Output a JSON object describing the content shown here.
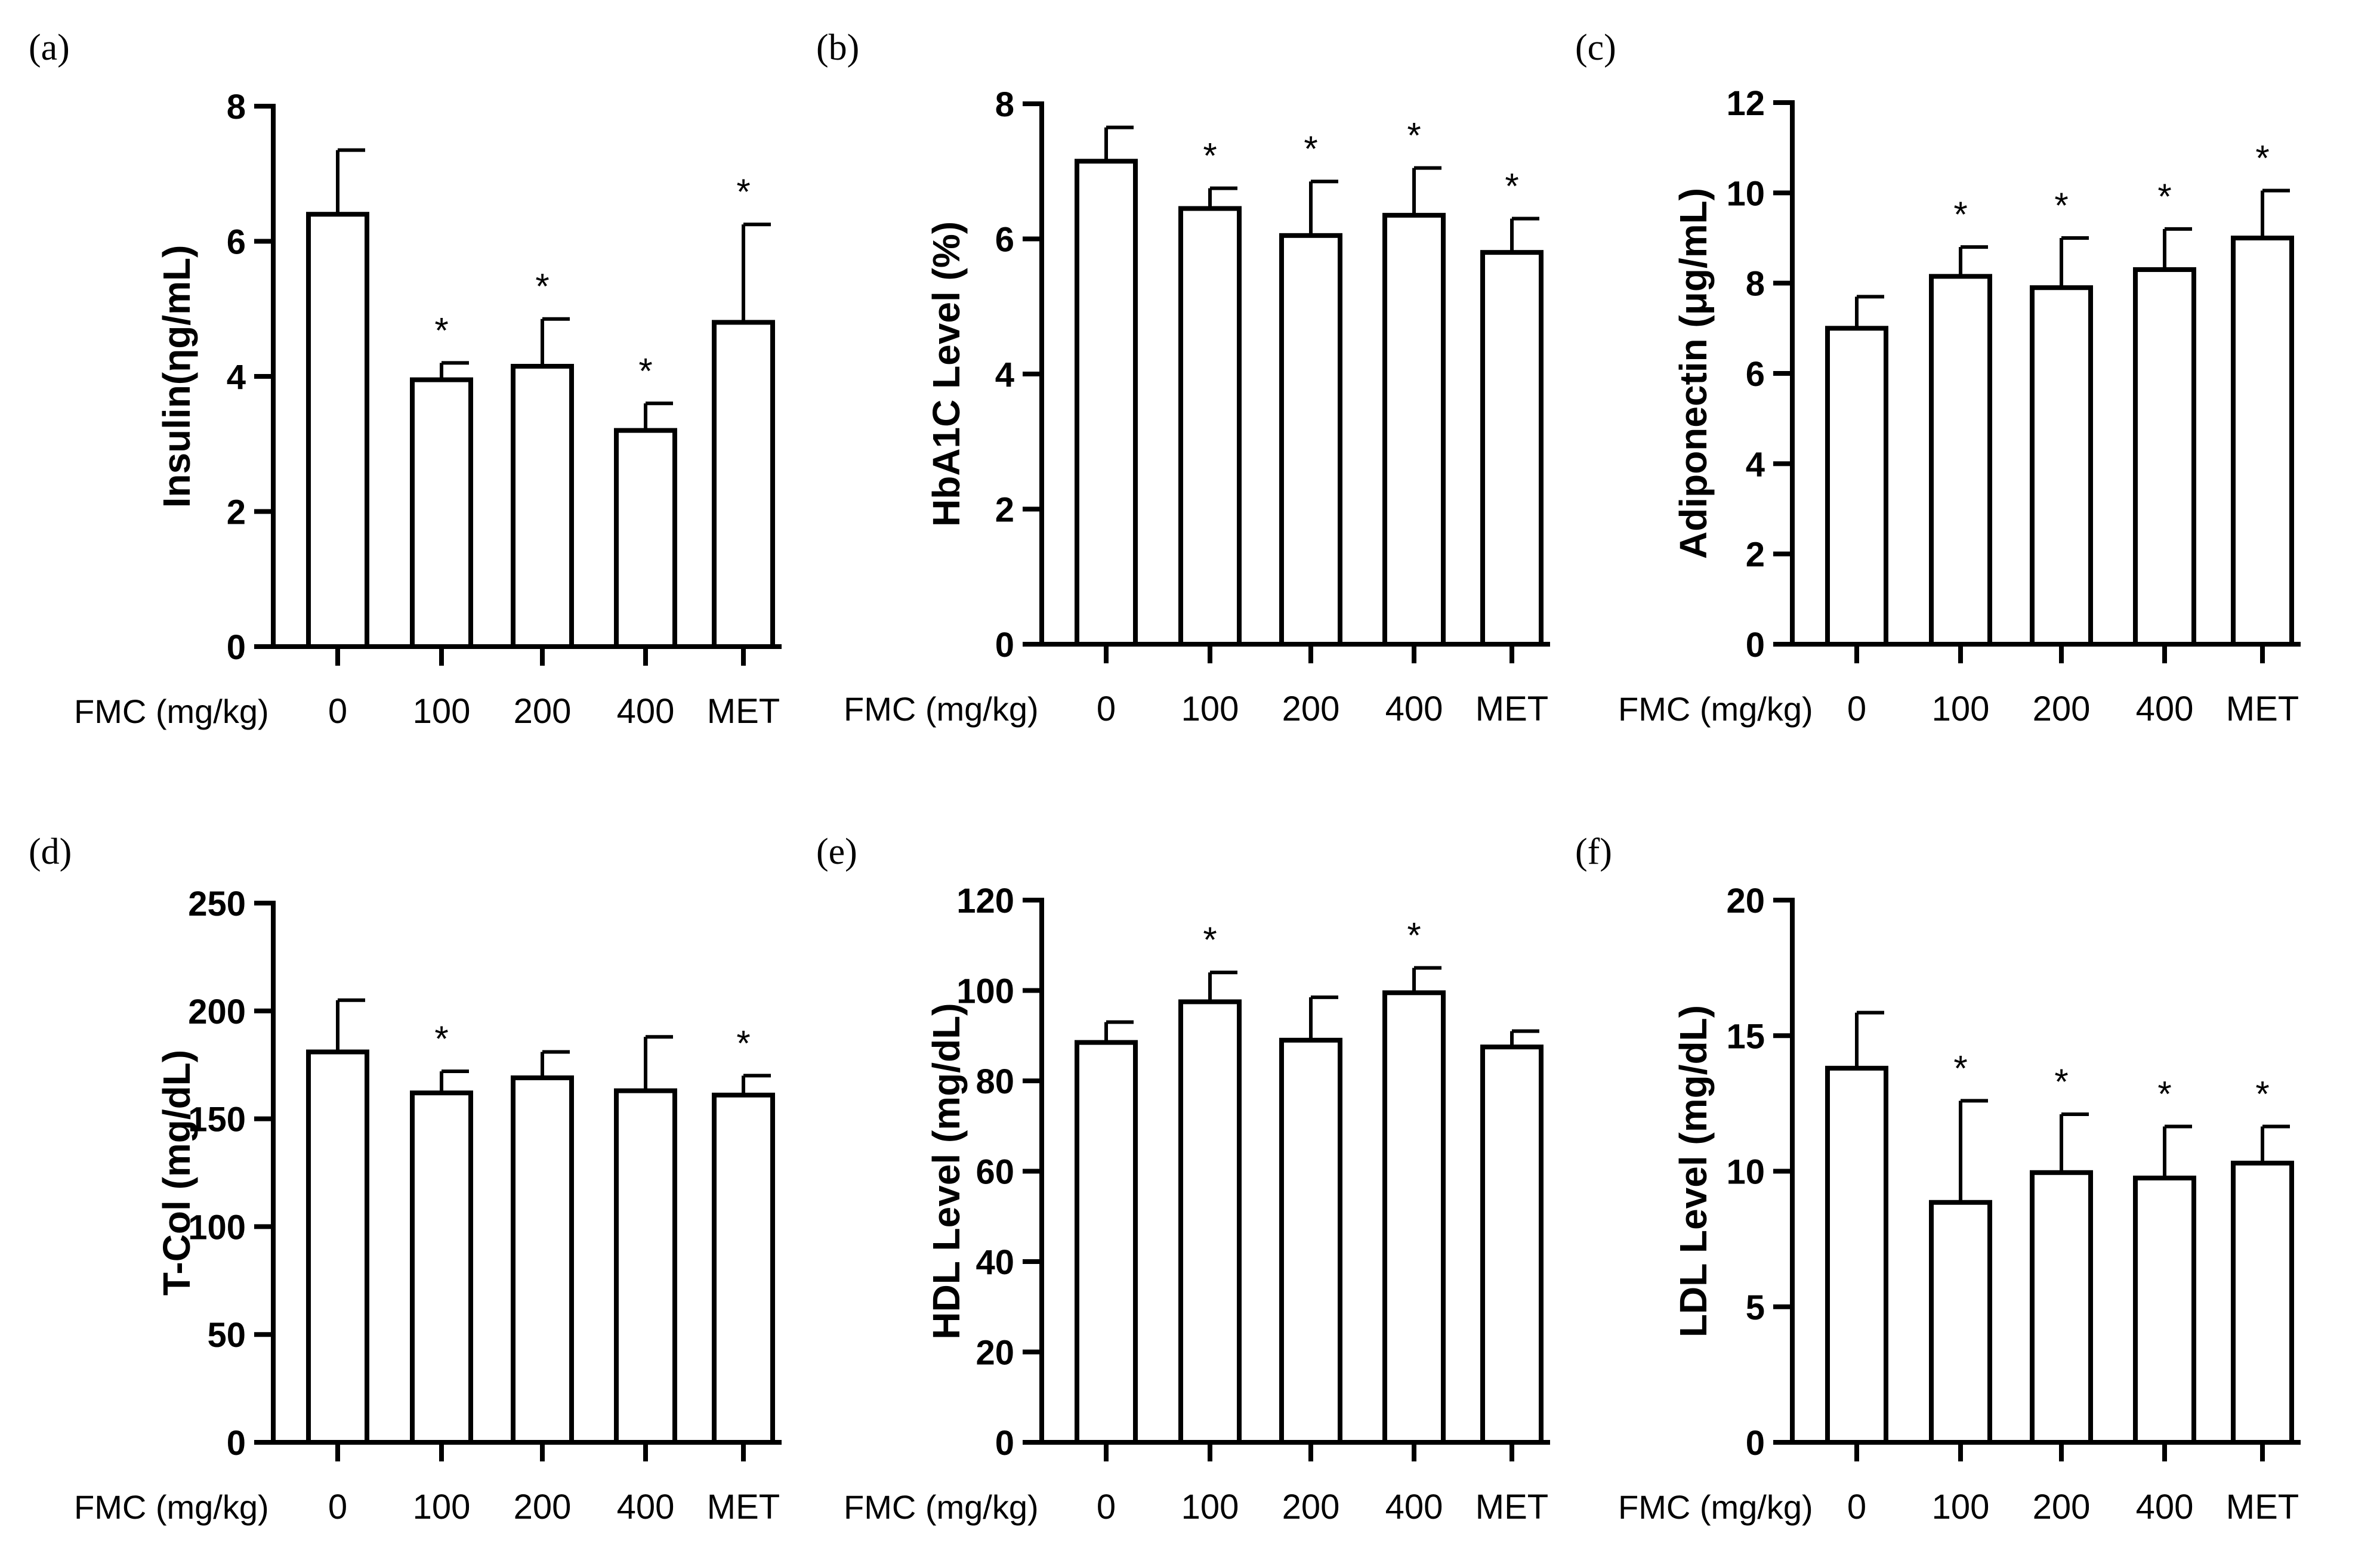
{
  "chart_data": [
    {
      "type": "bar",
      "panel": "(a)",
      "ylabel": "Insulin(ηg/mL)",
      "xlabel": "FMC (mg/kg)",
      "categories": [
        "0",
        "100",
        "200",
        "400",
        "MET"
      ],
      "values": [
        6.4,
        3.95,
        4.15,
        3.2,
        4.8
      ],
      "errors": [
        0.95,
        0.25,
        0.7,
        0.4,
        1.45
      ],
      "significant": [
        false,
        true,
        true,
        true,
        true
      ],
      "ylim": [
        0,
        8
      ],
      "yticks": [
        "0",
        "2",
        "4",
        "6",
        "8"
      ]
    },
    {
      "type": "bar",
      "panel": "(b)",
      "ylabel": "HbA1C Level (%)",
      "xlabel": "FMC (mg/kg)",
      "categories": [
        "0",
        "100",
        "200",
        "400",
        "MET"
      ],
      "values": [
        7.15,
        6.45,
        6.05,
        6.35,
        5.8
      ],
      "errors": [
        0.5,
        0.3,
        0.8,
        0.7,
        0.5
      ],
      "significant": [
        false,
        true,
        true,
        true,
        true
      ],
      "ylim": [
        0,
        8
      ],
      "yticks": [
        "0",
        "2",
        "4",
        "6",
        "8"
      ]
    },
    {
      "type": "bar",
      "panel": "(c)",
      "ylabel": "Adiponectin (μg/mL)",
      "xlabel": "FMC (mg/kg)",
      "categories": [
        "0",
        "100",
        "200",
        "400",
        "MET"
      ],
      "values": [
        7.0,
        8.15,
        7.9,
        8.3,
        9.0
      ],
      "errors": [
        0.7,
        0.65,
        1.1,
        0.9,
        1.05
      ],
      "significant": [
        false,
        true,
        true,
        true,
        true
      ],
      "ylim": [
        0,
        12
      ],
      "yticks": [
        "0",
        "2",
        "4",
        "6",
        "8",
        "10",
        "12"
      ]
    },
    {
      "type": "bar",
      "panel": "(d)",
      "ylabel": "T-Col (mg/dL)",
      "xlabel": "FMC (mg/kg)",
      "categories": [
        "0",
        "100",
        "200",
        "400",
        "MET"
      ],
      "values": [
        181,
        162,
        169,
        163,
        161
      ],
      "errors": [
        24,
        10,
        12,
        25,
        9
      ],
      "significant": [
        false,
        true,
        false,
        false,
        true
      ],
      "ylim": [
        0,
        250
      ],
      "yticks": [
        "0",
        "50",
        "100",
        "150",
        "200",
        "250"
      ]
    },
    {
      "type": "bar",
      "panel": "(e)",
      "ylabel": "HDL Level (mg/dL)",
      "xlabel": "FMC (mg/kg)",
      "categories": [
        "0",
        "100",
        "200",
        "400",
        "MET"
      ],
      "values": [
        88.5,
        97.5,
        89,
        99.5,
        87.5
      ],
      "errors": [
        4.5,
        6.5,
        9.5,
        5.5,
        3.5
      ],
      "significant": [
        false,
        true,
        false,
        true,
        false
      ],
      "ylim": [
        0,
        120
      ],
      "yticks": [
        "0",
        "20",
        "40",
        "60",
        "80",
        "100",
        "120"
      ]
    },
    {
      "type": "bar",
      "panel": "(f)",
      "ylabel": "LDL Level (mg/dL)",
      "xlabel": "FMC (mg/kg)",
      "categories": [
        "0",
        "100",
        "200",
        "400",
        "MET"
      ],
      "values": [
        13.8,
        8.85,
        9.95,
        9.75,
        10.3
      ],
      "errors": [
        2.05,
        3.75,
        2.15,
        1.9,
        1.35
      ],
      "significant": [
        false,
        true,
        true,
        true,
        true
      ],
      "ylim": [
        0,
        20
      ],
      "yticks": [
        "0",
        "5",
        "10",
        "15",
        "20"
      ]
    }
  ],
  "significance_marker": "*"
}
